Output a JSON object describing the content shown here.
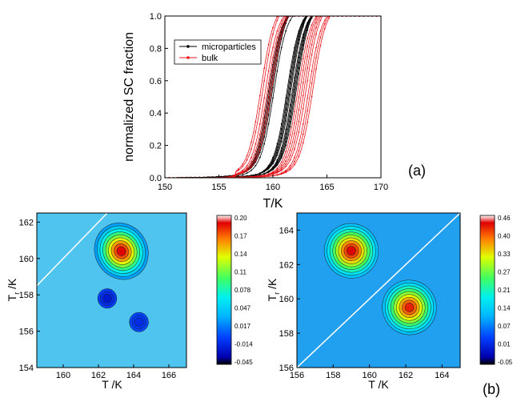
{
  "chart_data": [
    {
      "type": "line",
      "panel_label": "(a)",
      "xlabel": "T/K",
      "ylabel": "normalized SC fraction",
      "xlim": [
        150,
        170
      ],
      "ylim": [
        0.0,
        1.0
      ],
      "xticks": [
        "150",
        "155",
        "160",
        "165",
        "170"
      ],
      "yticks": [
        "0.0",
        "0.2",
        "0.4",
        "0.6",
        "0.8",
        "1.0"
      ],
      "legend_position": "upper-left",
      "series": [
        {
          "name": "microparticles",
          "color": "#000000",
          "warming_midpoints": [
            161.3,
            161.4,
            161.5,
            161.6,
            161.7,
            161.8,
            161.9,
            162.0,
            162.1,
            162.2
          ],
          "cooling_midpoints": [
            159.6,
            159.7,
            159.8,
            159.9,
            160.0,
            160.1
          ],
          "width": 0.6,
          "tail_start": 151.0
        },
        {
          "name": "bulk",
          "color": "#e8141b",
          "warming_midpoints": [
            162.3,
            162.5,
            162.7,
            162.9,
            163.1,
            163.3,
            163.5,
            163.7
          ],
          "cooling_midpoints": [
            158.9,
            159.1,
            159.3,
            159.5,
            159.7,
            159.9
          ],
          "width": 0.6,
          "tail_start": 156.5
        }
      ]
    },
    {
      "type": "heatmap",
      "xlabel": "T /K",
      "ylabel": "T",
      "ylabel_sub": "r",
      "ylabel_suffix": " /K",
      "xlim": [
        158.5,
        167
      ],
      "ylim": [
        154,
        162.5
      ],
      "xticks": [
        "160",
        "162",
        "164",
        "166"
      ],
      "yticks": [
        "154",
        "156",
        "158",
        "160",
        "162"
      ],
      "colorbar": [
        "0.20",
        "0.17",
        "0.14",
        "0.11",
        "0.078",
        "0.047",
        "0.017",
        "-0.014",
        "-0.045"
      ],
      "zmin": -0.045,
      "zmax": 0.2,
      "diagonal": "y = x",
      "features": [
        {
          "x": 163.3,
          "y": 160.4,
          "value": 0.2,
          "kind": "peak"
        },
        {
          "x": 162.5,
          "y": 157.8,
          "value": -0.03,
          "kind": "dip"
        },
        {
          "x": 164.3,
          "y": 156.5,
          "value": -0.02,
          "kind": "dip"
        }
      ]
    },
    {
      "type": "heatmap",
      "panel_label": "(b)",
      "xlabel": "T /K",
      "ylabel": "T",
      "ylabel_sub": "r",
      "ylabel_suffix": " /K",
      "xlim": [
        156,
        165
      ],
      "ylim": [
        156,
        165
      ],
      "xticks": [
        "156",
        "158",
        "160",
        "162",
        "164"
      ],
      "yticks": [
        "156",
        "158",
        "160",
        "162",
        "164"
      ],
      "colorbar": [
        "0.46",
        "0.40",
        "0.33",
        "0.27",
        "0.21",
        "0.14",
        "0.07",
        "0.01",
        "-0.05"
      ],
      "zmin": -0.05,
      "zmax": 0.46,
      "diagonal": "y = x",
      "features": [
        {
          "x": 159.0,
          "y": 162.8,
          "value": 0.46,
          "kind": "peak"
        },
        {
          "x": 162.2,
          "y": 159.5,
          "value": 0.44,
          "kind": "peak"
        }
      ]
    }
  ]
}
